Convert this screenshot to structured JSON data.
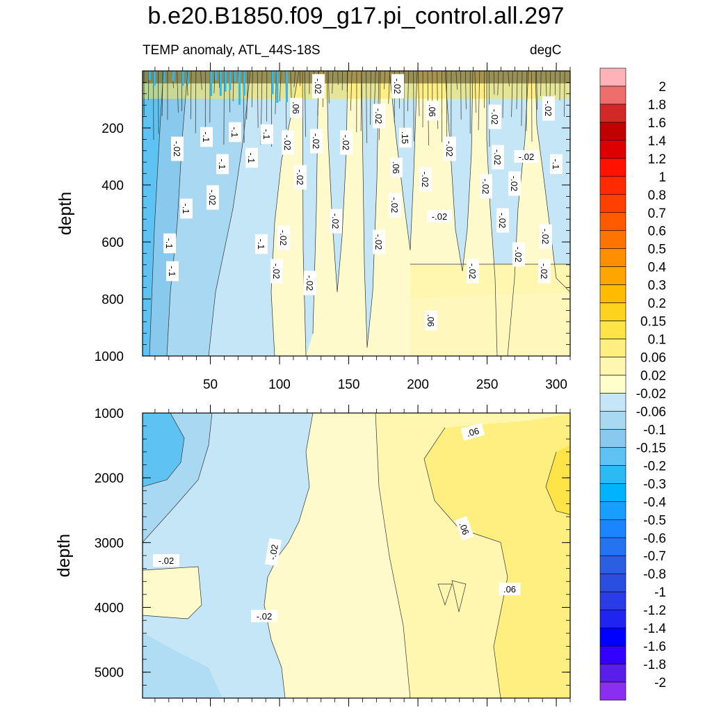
{
  "chart_data": {
    "type": "heatmap",
    "title": "b.e20.B1850.f09_g17.pi_control.all.297",
    "subtitle_left": "TEMP anomaly, ATL_44S-18S",
    "subtitle_right": "degC",
    "panels": [
      {
        "name": "upper",
        "ylabel": "depth",
        "ylim": [
          0,
          1000
        ],
        "yticks": [
          200,
          400,
          600,
          800,
          1000
        ],
        "xlim": [
          1,
          310
        ],
        "xticks": [
          50,
          100,
          150,
          200,
          250,
          300
        ],
        "contour_labels": [
          "-.02",
          "-.1",
          "-.1",
          "-.1",
          "-.1",
          "-.1",
          "-.02",
          "-.02",
          "-.02",
          "-.02",
          ".06",
          "-.02",
          "-.02",
          ".15",
          ".06",
          "-.02",
          "-.02",
          "-.02",
          "-.02",
          ".06",
          "-.02",
          "-.02",
          "-.02",
          "-.02",
          "-.02",
          "-.02",
          "-.1",
          "-.02",
          "-.1",
          "-.02",
          "-.02",
          "-.1",
          "-.1",
          "-.02",
          "-.02",
          "-.02",
          "-.02",
          ".06",
          "-.02",
          "-.02",
          "-.02",
          "-.02",
          "-.02",
          "-.1"
        ]
      },
      {
        "name": "lower",
        "ylabel": "depth",
        "ylim": [
          1000,
          5400
        ],
        "yticks": [
          1000,
          2000,
          3000,
          4000,
          5000
        ],
        "xlim": [
          1,
          310
        ],
        "contour_labels": [
          "-.02",
          "-.02",
          "-.02",
          ".06",
          ".06",
          ".06"
        ]
      }
    ],
    "colorbar": {
      "levels": [
        "2",
        "1.8",
        "1.6",
        "1.4",
        "1.2",
        "1",
        "0.8",
        "0.7",
        "0.6",
        "0.5",
        "0.4",
        "0.3",
        "0.2",
        "0.15",
        "0.1",
        "0.06",
        "0.02",
        "-0.02",
        "-0.06",
        "-0.1",
        "-0.15",
        "-0.2",
        "-0.3",
        "-0.4",
        "-0.5",
        "-0.6",
        "-0.7",
        "-0.8",
        "-1",
        "-1.2",
        "-1.4",
        "-1.6",
        "-1.8",
        "-2"
      ],
      "colors": [
        "#ffb3b8",
        "#ee6e6e",
        "#d32828",
        "#c10000",
        "#dd0000",
        "#ff1200",
        "#ff2a00",
        "#ff4000",
        "#ff5a00",
        "#ff7400",
        "#ff8e00",
        "#ffa500",
        "#ffbb00",
        "#ffd21e",
        "#ffe447",
        "#ffef80",
        "#fff6b0",
        "#ffffcc",
        "#c4e6f6",
        "#a8d8f2",
        "#88c9ed",
        "#5ec2f2",
        "#2cbaf2",
        "#00b3ff",
        "#169fff",
        "#1a85ff",
        "#2473f0",
        "#2a60e0",
        "#2a4ee0",
        "#2a3be8",
        "#1f24f0",
        "#0000ff",
        "#3300ff",
        "#5a1eea",
        "#8a2ff2"
      ]
    }
  }
}
